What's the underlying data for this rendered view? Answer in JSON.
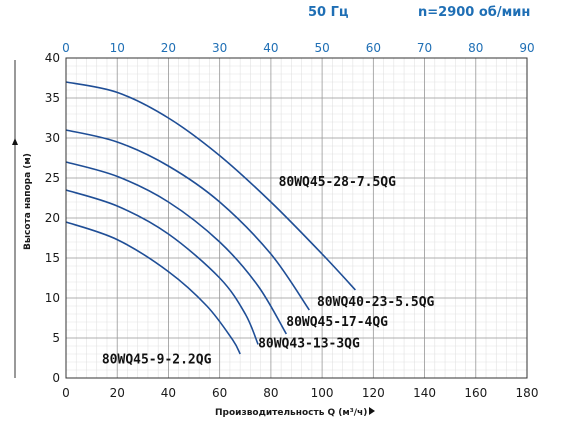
{
  "header": {
    "frequency": "50 Гц",
    "speed": "n=2900 об/мин"
  },
  "colors": {
    "curve": "#1f4e96",
    "accent_text": "#1f6fb5",
    "grid": "#c8c8c8",
    "axis": "#333333"
  },
  "chart_data": {
    "type": "line",
    "xlabel": "Производительность Q (м³/ч)",
    "ylabel": "Высота напора (м)",
    "xlim": [
      0,
      180
    ],
    "ylim": [
      0,
      40
    ],
    "x_ticks": [
      "0",
      "20",
      "40",
      "60",
      "80",
      "100",
      "120",
      "140",
      "160",
      "180"
    ],
    "y_ticks": [
      "0",
      "5",
      "10",
      "15",
      "20",
      "25",
      "30",
      "35",
      "40"
    ],
    "top_xlim": [
      0,
      90
    ],
    "top_x_ticks": [
      "0",
      "10",
      "20",
      "30",
      "40",
      "50",
      "60",
      "70",
      "80",
      "90"
    ],
    "grid": true,
    "series": [
      {
        "name": "80WQ45-28-7.5QG",
        "x": [
          0,
          20,
          40,
          60,
          80,
          100,
          113
        ],
        "y": [
          37,
          35.7,
          32.5,
          27.8,
          22,
          15.5,
          11
        ]
      },
      {
        "name": "80WQ40-23-5.5QG",
        "x": [
          0,
          20,
          40,
          60,
          80,
          95
        ],
        "y": [
          31,
          29.5,
          26.5,
          22,
          15.5,
          8.5
        ]
      },
      {
        "name": "80WQ45-17-4QG",
        "x": [
          0,
          20,
          40,
          60,
          75,
          86
        ],
        "y": [
          27,
          25.2,
          22,
          17,
          11.5,
          5.5
        ]
      },
      {
        "name": "80WQ43-13-3QG",
        "x": [
          0,
          20,
          40,
          60,
          70,
          75
        ],
        "y": [
          23.5,
          21.5,
          18,
          12.5,
          8,
          4.2
        ]
      },
      {
        "name": "80WQ45-9-2.2QG",
        "x": [
          0,
          20,
          40,
          55,
          65,
          68
        ],
        "y": [
          19.5,
          17.3,
          13.3,
          9,
          4.8,
          3
        ]
      }
    ],
    "labels": [
      {
        "text": "80WQ45-28-7.5QG",
        "x": 83,
        "y": 24
      },
      {
        "text": "80WQ40-23-5.5QG",
        "x": 98,
        "y": 9
      },
      {
        "text": "80WQ45-17-4QG",
        "x": 86,
        "y": 6.5
      },
      {
        "text": "80WQ43-13-3QG",
        "x": 75,
        "y": 3.8
      },
      {
        "text": "80WQ45-9-2.2QG",
        "x": 14,
        "y": 1.8
      }
    ]
  }
}
